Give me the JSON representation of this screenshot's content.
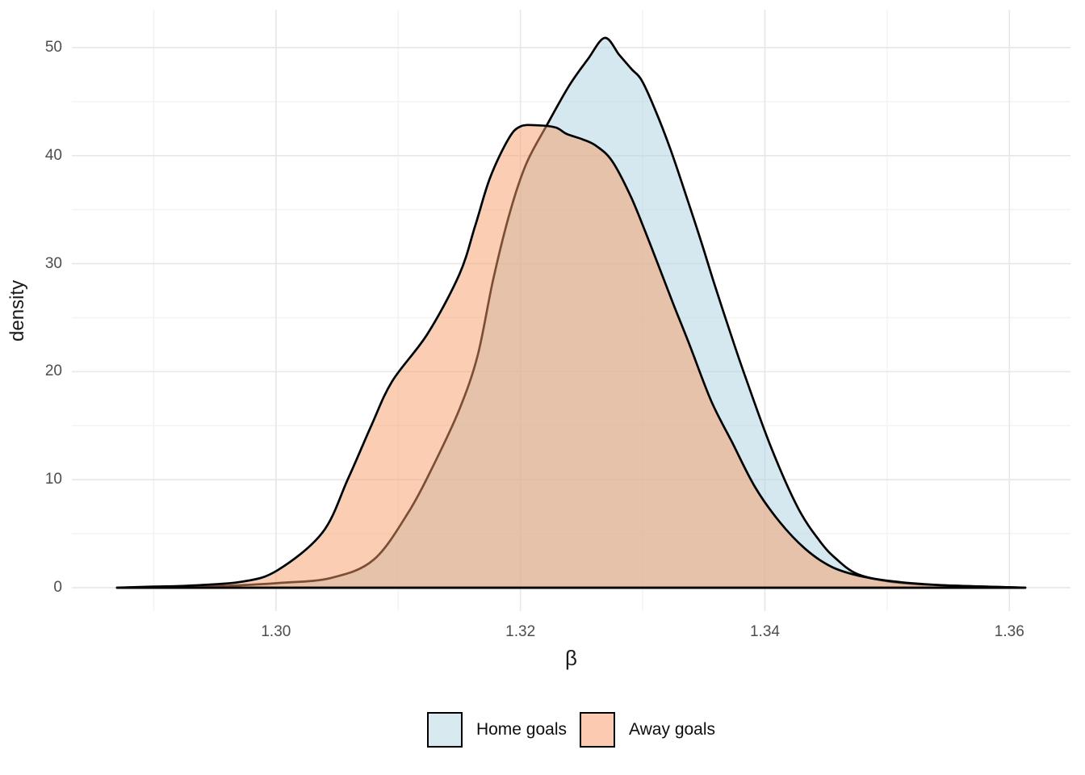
{
  "chart_data": {
    "type": "area",
    "subtype": "density",
    "title": "",
    "xlabel": "β",
    "ylabel": "density",
    "grid": true,
    "legend_position": "bottom",
    "xlim": [
      1.2833,
      1.365
    ],
    "ylim": [
      -2.17,
      53.51
    ],
    "x_ticks": [
      {
        "value": 1.3,
        "label": "1.30"
      },
      {
        "value": 1.32,
        "label": "1.32"
      },
      {
        "value": 1.34,
        "label": "1.34"
      },
      {
        "value": 1.36,
        "label": "1.36"
      }
    ],
    "x_minor_ticks": [
      1.29,
      1.31,
      1.33,
      1.35
    ],
    "y_ticks": [
      {
        "value": 0,
        "label": "0"
      },
      {
        "value": 10,
        "label": "10"
      },
      {
        "value": 20,
        "label": "20"
      },
      {
        "value": 30,
        "label": "30"
      },
      {
        "value": 40,
        "label": "40"
      },
      {
        "value": 50,
        "label": "50"
      }
    ],
    "y_minor_ticks": [
      5,
      15,
      25,
      35,
      45
    ],
    "colors": {
      "grid_major": "#e7e7e7",
      "grid_minor": "#f3f3f3",
      "tick_text": "#4d4d4d",
      "curve_stroke": "#000000"
    },
    "series": [
      {
        "name": "Home goals",
        "fill": "rgba(179,211,225,0.55)",
        "stroke": "#000000",
        "legend_fill": "#d9e9f0",
        "points": [
          [
            1.287,
            0.0
          ],
          [
            1.29,
            0.05
          ],
          [
            1.294,
            0.1
          ],
          [
            1.2975,
            0.25
          ],
          [
            1.3005,
            0.45
          ],
          [
            1.3045,
            0.9
          ],
          [
            1.308,
            2.6
          ],
          [
            1.3109,
            7.1
          ],
          [
            1.313,
            11.6
          ],
          [
            1.315,
            16.5
          ],
          [
            1.3165,
            21.5
          ],
          [
            1.3178,
            28.7
          ],
          [
            1.3192,
            35.0
          ],
          [
            1.3205,
            39.3
          ],
          [
            1.3221,
            42.7
          ],
          [
            1.324,
            46.5
          ],
          [
            1.3255,
            48.9
          ],
          [
            1.3269,
            50.9
          ],
          [
            1.3281,
            49.3
          ],
          [
            1.3291,
            48.0
          ],
          [
            1.3299,
            47.0
          ],
          [
            1.331,
            44.3
          ],
          [
            1.3323,
            40.5
          ],
          [
            1.3337,
            35.8
          ],
          [
            1.3348,
            32.0
          ],
          [
            1.3359,
            28.0
          ],
          [
            1.3372,
            23.5
          ],
          [
            1.3385,
            19.2
          ],
          [
            1.3405,
            13.0
          ],
          [
            1.3427,
            7.4
          ],
          [
            1.3445,
            4.3
          ],
          [
            1.3458,
            2.7
          ],
          [
            1.3475,
            1.3
          ],
          [
            1.35,
            0.6
          ],
          [
            1.353,
            0.3
          ],
          [
            1.3565,
            0.15
          ],
          [
            1.3613,
            0.0
          ]
        ]
      },
      {
        "name": "Away goals",
        "fill": "rgba(247,157,103,0.5)",
        "stroke": "#000000",
        "legend_fill": "#fccab0",
        "points": [
          [
            1.287,
            0.0
          ],
          [
            1.29,
            0.1
          ],
          [
            1.293,
            0.2
          ],
          [
            1.2972,
            0.55
          ],
          [
            1.3001,
            1.6
          ],
          [
            1.3038,
            5.1
          ],
          [
            1.3059,
            10.1
          ],
          [
            1.3078,
            15.0
          ],
          [
            1.3095,
            19.1
          ],
          [
            1.3124,
            23.5
          ],
          [
            1.315,
            29.0
          ],
          [
            1.3163,
            33.5
          ],
          [
            1.3175,
            37.9
          ],
          [
            1.319,
            41.5
          ],
          [
            1.32,
            42.7
          ],
          [
            1.3215,
            42.8
          ],
          [
            1.3229,
            42.6
          ],
          [
            1.3238,
            42.0
          ],
          [
            1.3251,
            41.5
          ],
          [
            1.3262,
            40.9
          ],
          [
            1.3275,
            39.5
          ],
          [
            1.329,
            36.3
          ],
          [
            1.3302,
            33.0
          ],
          [
            1.3313,
            29.8
          ],
          [
            1.3326,
            26.0
          ],
          [
            1.3339,
            22.3
          ],
          [
            1.3356,
            17.3
          ],
          [
            1.3373,
            13.5
          ],
          [
            1.3392,
            9.3
          ],
          [
            1.3412,
            6.1
          ],
          [
            1.3433,
            3.6
          ],
          [
            1.3455,
            1.9
          ],
          [
            1.3481,
            1.0
          ],
          [
            1.3512,
            0.5
          ],
          [
            1.3552,
            0.2
          ],
          [
            1.3613,
            0.0
          ]
        ]
      }
    ]
  }
}
